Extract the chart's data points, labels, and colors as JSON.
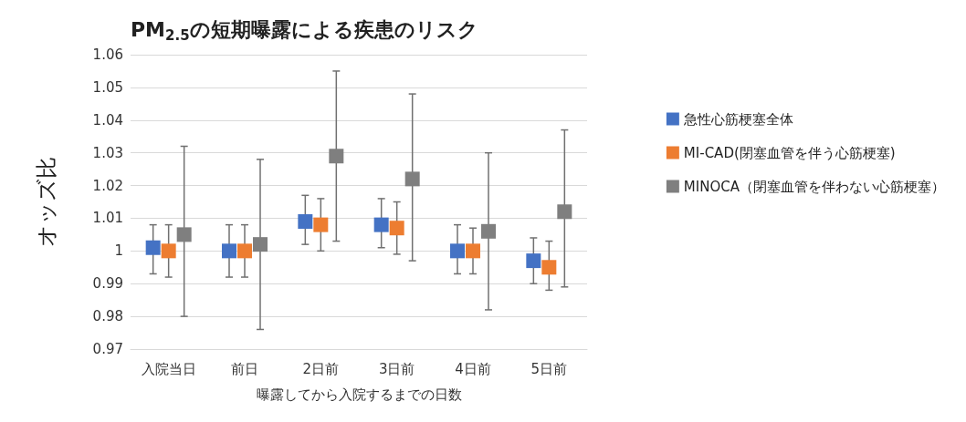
{
  "chart_data": {
    "type": "scatter",
    "title": "PM$_{2.5}$の短期曝露による疾患のリスク",
    "xlabel": "曝露してから入院するまでの日数",
    "ylabel": "オッズ比",
    "categories": [
      "入院当日",
      "前日",
      "2日前",
      "3日前",
      "4日前",
      "5日前"
    ],
    "series": [
      {
        "name": "急性心筋梗塞全体",
        "color": "#4472c4",
        "values": [
          1.001,
          1.0,
          1.009,
          1.008,
          1.0,
          0.997
        ],
        "errors": [
          [
            0.993,
            1.008
          ],
          [
            0.992,
            1.008
          ],
          [
            1.002,
            1.017
          ],
          [
            1.001,
            1.016
          ],
          [
            0.993,
            1.008
          ],
          [
            0.99,
            1.004
          ]
        ]
      },
      {
        "name": "MI-CAD(閉塞血管を伴う心筋梗塞)",
        "color": "#ed7d31",
        "values": [
          1.0,
          1.0,
          1.008,
          1.007,
          1.0,
          0.995
        ],
        "errors": [
          [
            0.992,
            1.008
          ],
          [
            0.992,
            1.008
          ],
          [
            1.0,
            1.016
          ],
          [
            0.999,
            1.015
          ],
          [
            0.993,
            1.007
          ],
          [
            0.988,
            1.003
          ]
        ]
      },
      {
        "name": "MINOCA（閉塞血管を伴わない心筋梗塞）",
        "color": "#7f7f7f",
        "values": [
          1.005,
          1.002,
          1.029,
          1.022,
          1.006,
          1.012
        ],
        "errors": [
          [
            0.98,
            1.032
          ],
          [
            0.976,
            1.028
          ],
          [
            1.003,
            1.055
          ],
          [
            0.997,
            1.048
          ],
          [
            0.982,
            1.03
          ],
          [
            0.989,
            1.037
          ]
        ]
      }
    ],
    "ylim": [
      0.97,
      1.06
    ],
    "yticks": [
      0.97,
      0.98,
      0.99,
      1,
      1.01,
      1.02,
      1.03,
      1.04,
      1.05,
      1.06
    ],
    "grid": "y",
    "legend": "right",
    "marker": "square"
  }
}
